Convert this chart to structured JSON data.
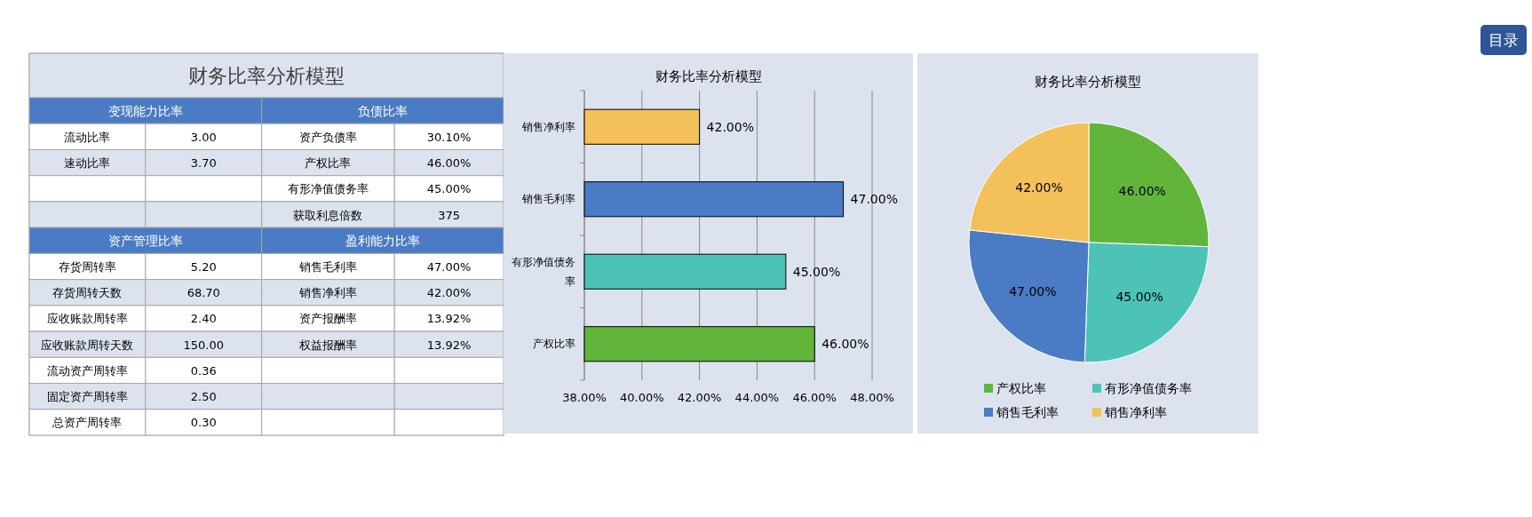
{
  "chart_data": [
    {
      "type": "other",
      "title": "财务比率分析模型",
      "annotations": [
        "目录"
      ],
      "cell_labels": [
        [
          "变现能力比率",
          null,
          "负债比率",
          null
        ],
        [
          "流动比率",
          "3.00",
          "资产负债率",
          "30.10%"
        ],
        [
          "速动比率",
          "3.70",
          "产权比率",
          "46.00%"
        ],
        [
          null,
          null,
          "有形净值债务率",
          "45.00%"
        ],
        [
          null,
          null,
          "获取利息倍数",
          "375"
        ],
        [
          "资产管理比率",
          null,
          "盈利能力比率",
          null
        ],
        [
          "存货周转率",
          "5.20",
          "销售毛利率",
          "47.00%"
        ],
        [
          "存货周转天数",
          "68.70",
          "销售净利率",
          "42.00%"
        ],
        [
          "应收账款周转率",
          "2.40",
          "资产报酬率",
          "13.92%"
        ],
        [
          "应收账款周转天数",
          "150.00",
          "权益报酬率",
          "13.92%"
        ],
        [
          "流动资产周转率",
          "0.36",
          null,
          null
        ],
        [
          "固定资产周转率",
          "2.50",
          null,
          null
        ],
        [
          "总资产周转率",
          "0.30",
          null,
          null
        ]
      ]
    },
    {
      "type": "bar",
      "orientation": "horizontal",
      "title": "财务比率分析模型",
      "categories": [
        "销售净利率",
        "销售毛利率",
        "有形净值债务率",
        "产权比率"
      ],
      "values": [
        42,
        47,
        45,
        46
      ],
      "colors": [
        "#f3c05a",
        "#4a7bc4",
        "#4dc3b8",
        "#62b53b"
      ],
      "value_labels": [
        "42.00%",
        "47.00%",
        "45.00%",
        "46.00%"
      ],
      "xlim": [
        38,
        48
      ],
      "xticks": [
        {
          "value": 38,
          "label": "38.00%"
        },
        {
          "value": 40,
          "label": "40.00%"
        },
        {
          "value": 42,
          "label": "42.00%"
        },
        {
          "value": 44,
          "label": "44.00%"
        },
        {
          "value": 46,
          "label": "46.00%"
        },
        {
          "value": 48,
          "label": "48.00%"
        }
      ],
      "grid": "x"
    },
    {
      "type": "pie",
      "title": "财务比率分析模型",
      "categories": [
        "产权比率",
        "有形净值债务率",
        "销售毛利率",
        "销售净利率"
      ],
      "values": [
        46,
        45,
        47,
        42
      ],
      "colors": [
        "#62b53b",
        "#4dc3b8",
        "#4a7bc4",
        "#f3c05a"
      ],
      "value_labels": [
        "46.00%",
        "45.00%",
        "47.00%",
        "42.00%"
      ],
      "legend": "bottom"
    }
  ]
}
